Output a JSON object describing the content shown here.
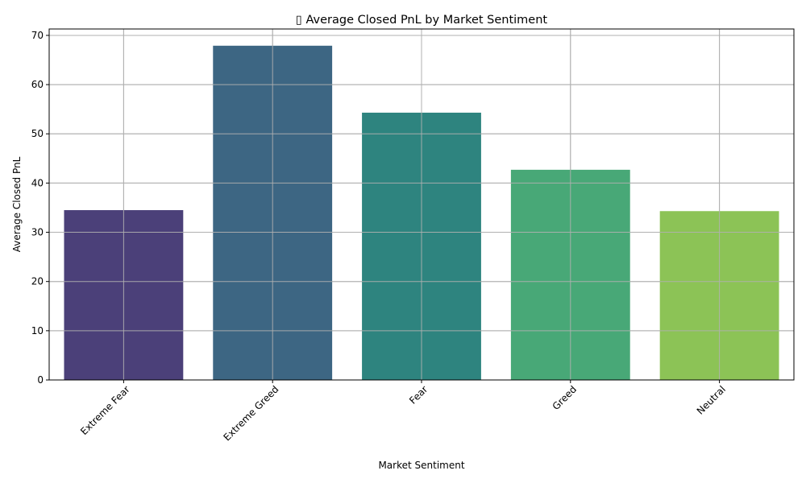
{
  "chart_data": {
    "type": "bar",
    "title": "▯ Average Closed PnL by Market Sentiment",
    "xlabel": "Market Sentiment",
    "ylabel": "Average Closed PnL",
    "categories": [
      "Extreme Fear",
      "Extreme Greed",
      "Fear",
      "Greed",
      "Neutral"
    ],
    "values": [
      34.5,
      67.9,
      54.3,
      42.7,
      34.3
    ],
    "colors": [
      "#4b4079",
      "#3d6683",
      "#2e847f",
      "#48a877",
      "#8cc356"
    ],
    "ylim": [
      0,
      71.3
    ],
    "yticks": [
      0,
      10,
      20,
      30,
      40,
      50,
      60,
      70
    ],
    "grid": true,
    "xtick_rotation": 45
  }
}
